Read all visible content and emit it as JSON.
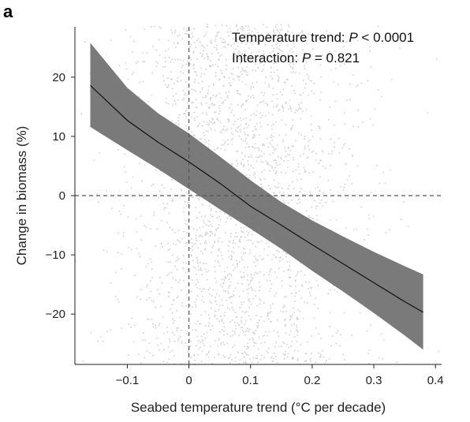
{
  "panel_label": "a",
  "chart_data": {
    "type": "line",
    "xlabel": "Seabed temperature trend (°C per decade)",
    "ylabel": "Change in biomass (%)",
    "xlim": [
      -0.185,
      0.41
    ],
    "ylim": [
      -28.5,
      28.5
    ],
    "xticks": [
      -0.1,
      0,
      0.1,
      0.2,
      0.3,
      0.4
    ],
    "xtick_labels": [
      "−0.1",
      "0",
      "0.1",
      "0.2",
      "0.3",
      "0.4"
    ],
    "yticks": [
      -20,
      -10,
      0,
      10,
      20
    ],
    "ytick_labels": [
      "−20",
      "−10",
      "0",
      "10",
      "20"
    ],
    "reference_lines": {
      "x": 0,
      "y": 0,
      "style": "dashed"
    },
    "annotations": [
      {
        "prefix": "Temperature trend: ",
        "italic": "P",
        "suffix": " < 0.0001"
      },
      {
        "prefix": "Interaction: ",
        "italic": "P",
        "suffix": " = 0.821"
      }
    ],
    "series": [
      {
        "x": [
          -0.16,
          -0.1,
          -0.05,
          0,
          0.05,
          0.1,
          0.15,
          0.2,
          0.25,
          0.3,
          0.35,
          0.38
        ],
        "y": [
          18.6,
          12.7,
          9.0,
          5.7,
          2.1,
          -1.8,
          -5.0,
          -8.3,
          -11.5,
          -14.7,
          -17.9,
          -19.7
        ],
        "lower": [
          11.6,
          7.7,
          4.5,
          1.1,
          -2.3,
          -5.6,
          -9.0,
          -12.7,
          -16.2,
          -19.8,
          -23.6,
          -26.0
        ],
        "upper": [
          25.8,
          18.2,
          13.9,
          10.5,
          6.6,
          2.6,
          -1.1,
          -4.2,
          -6.9,
          -9.5,
          -11.9,
          -13.3
        ]
      }
    ],
    "background_points": "dense grey scatter of observations, concentrated between about −0.06 and 0.22 °C per decade",
    "colors": {
      "points": "#c8c8c8",
      "band": "#6b6b6b",
      "line": "#111111",
      "reference": "#555555"
    }
  }
}
